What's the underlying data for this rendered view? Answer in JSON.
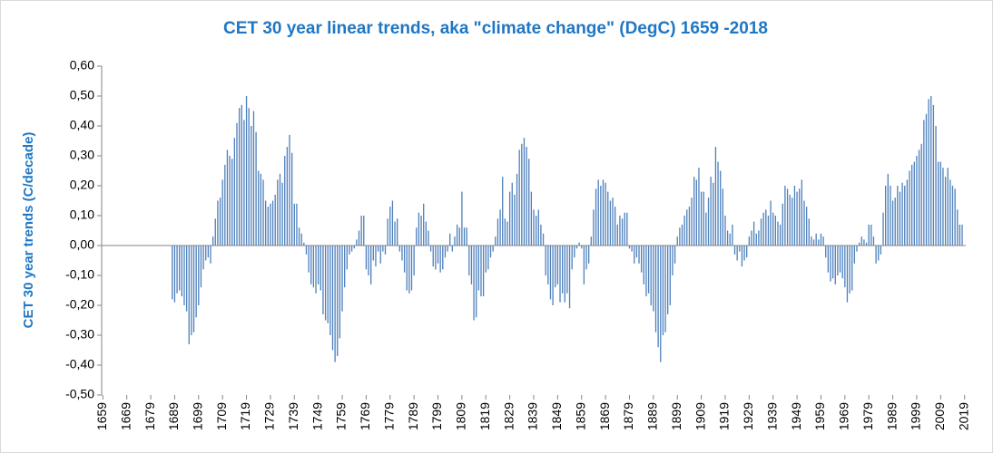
{
  "chart_data": {
    "type": "bar",
    "title": "CET 30 year linear trends, aka \"climate change\"  (DegC) 1659 -2018",
    "y_label": "CET 30 year trends (C/decade)",
    "color": "#4f81bd",
    "ylim": [
      -0.5,
      0.6
    ],
    "yticks": [
      {
        "value": -0.5,
        "label": "-0,50"
      },
      {
        "value": -0.4,
        "label": "-0,40"
      },
      {
        "value": -0.3,
        "label": "-0,30"
      },
      {
        "value": -0.2,
        "label": "-0,20"
      },
      {
        "value": -0.1,
        "label": "-0,10"
      },
      {
        "value": 0,
        "label": "0,00"
      },
      {
        "value": 0.1,
        "label": "0,10"
      },
      {
        "value": 0.2,
        "label": "0,20"
      },
      {
        "value": 0.3,
        "label": "0,30"
      },
      {
        "value": 0.4,
        "label": "0,40"
      },
      {
        "value": 0.5,
        "label": "0,50"
      },
      {
        "value": 0.6,
        "label": "0,60"
      }
    ],
    "grid": false,
    "categories": [
      "1659",
      null,
      null,
      null,
      null,
      null,
      null,
      null,
      null,
      null,
      "1669",
      null,
      null,
      null,
      null,
      null,
      null,
      null,
      null,
      null,
      "1679",
      null,
      null,
      null,
      null,
      null,
      null,
      null,
      null,
      null,
      "1689",
      null,
      null,
      null,
      null,
      null,
      null,
      null,
      null,
      null,
      "1699",
      null,
      null,
      null,
      null,
      null,
      null,
      null,
      null,
      null,
      "1709",
      null,
      null,
      null,
      null,
      null,
      null,
      null,
      null,
      null,
      "1719",
      null,
      null,
      null,
      null,
      null,
      null,
      null,
      null,
      null,
      "1729",
      null,
      null,
      null,
      null,
      null,
      null,
      null,
      null,
      null,
      "1739",
      null,
      null,
      null,
      null,
      null,
      null,
      null,
      null,
      null,
      "1749",
      null,
      null,
      null,
      null,
      null,
      null,
      null,
      null,
      null,
      "1759",
      null,
      null,
      null,
      null,
      null,
      null,
      null,
      null,
      null,
      "1769",
      null,
      null,
      null,
      null,
      null,
      null,
      null,
      null,
      null,
      "1779",
      null,
      null,
      null,
      null,
      null,
      null,
      null,
      null,
      null,
      "1789",
      null,
      null,
      null,
      null,
      null,
      null,
      null,
      null,
      null,
      "1799",
      null,
      null,
      null,
      null,
      null,
      null,
      null,
      null,
      null,
      "1809",
      null,
      null,
      null,
      null,
      null,
      null,
      null,
      null,
      null,
      "1819",
      null,
      null,
      null,
      null,
      null,
      null,
      null,
      null,
      null,
      "1829",
      null,
      null,
      null,
      null,
      null,
      null,
      null,
      null,
      null,
      "1839",
      null,
      null,
      null,
      null,
      null,
      null,
      null,
      null,
      null,
      "1849",
      null,
      null,
      null,
      null,
      null,
      null,
      null,
      null,
      null,
      "1859",
      null,
      null,
      null,
      null,
      null,
      null,
      null,
      null,
      null,
      "1869",
      null,
      null,
      null,
      null,
      null,
      null,
      null,
      null,
      null,
      "1879",
      null,
      null,
      null,
      null,
      null,
      null,
      null,
      null,
      null,
      "1889",
      null,
      null,
      null,
      null,
      null,
      null,
      null,
      null,
      null,
      "1899",
      null,
      null,
      null,
      null,
      null,
      null,
      null,
      null,
      null,
      "1909",
      null,
      null,
      null,
      null,
      null,
      null,
      null,
      null,
      null,
      "1919",
      null,
      null,
      null,
      null,
      null,
      null,
      null,
      null,
      null,
      "1929",
      null,
      null,
      null,
      null,
      null,
      null,
      null,
      null,
      null,
      "1939",
      null,
      null,
      null,
      null,
      null,
      null,
      null,
      null,
      null,
      "1949",
      null,
      null,
      null,
      null,
      null,
      null,
      null,
      null,
      null,
      "1959",
      null,
      null,
      null,
      null,
      null,
      null,
      null,
      null,
      null,
      "1969",
      null,
      null,
      null,
      null,
      null,
      null,
      null,
      null,
      null,
      "1979",
      null,
      null,
      null,
      null,
      null,
      null,
      null,
      null,
      null,
      "1989",
      null,
      null,
      null,
      null,
      null,
      null,
      null,
      null,
      null,
      "1999",
      null,
      null,
      null,
      null,
      null,
      null,
      null,
      null,
      null,
      "2009",
      null,
      null,
      null,
      null,
      null,
      null,
      null,
      null,
      null,
      "2019"
    ],
    "values": [
      null,
      null,
      null,
      null,
      null,
      null,
      null,
      null,
      null,
      null,
      null,
      null,
      null,
      null,
      null,
      null,
      null,
      null,
      null,
      null,
      null,
      null,
      null,
      null,
      null,
      null,
      null,
      null,
      null,
      -0.18,
      -0.19,
      -0.16,
      -0.15,
      -0.17,
      -0.2,
      -0.22,
      -0.33,
      -0.3,
      -0.29,
      -0.24,
      -0.2,
      -0.14,
      -0.08,
      -0.05,
      -0.04,
      -0.06,
      0.03,
      0.09,
      0.15,
      0.16,
      0.22,
      0.27,
      0.32,
      0.3,
      0.29,
      0.36,
      0.41,
      0.46,
      0.47,
      0.42,
      0.5,
      0.46,
      0.4,
      0.45,
      0.38,
      0.25,
      0.24,
      0.22,
      0.15,
      0.13,
      0.14,
      0.15,
      0.17,
      0.22,
      0.24,
      0.21,
      0.3,
      0.33,
      0.37,
      0.31,
      0.14,
      0.14,
      0.06,
      0.04,
      0.01,
      -0.03,
      -0.09,
      -0.13,
      -0.14,
      -0.16,
      -0.13,
      -0.15,
      -0.23,
      -0.25,
      -0.26,
      -0.3,
      -0.35,
      -0.39,
      -0.37,
      -0.31,
      -0.22,
      -0.14,
      -0.08,
      -0.03,
      -0.02,
      -0.01,
      0.02,
      0.05,
      0.1,
      0.1,
      -0.08,
      -0.1,
      -0.13,
      -0.05,
      -0.07,
      -0.02,
      -0.06,
      -0.02,
      -0.03,
      0.09,
      0.13,
      0.15,
      0.08,
      0.09,
      -0.02,
      -0.05,
      -0.09,
      -0.15,
      -0.16,
      -0.15,
      -0.1,
      0.06,
      0.11,
      0.1,
      0.14,
      0.08,
      0.05,
      -0.02,
      -0.07,
      -0.08,
      -0.06,
      -0.09,
      -0.08,
      -0.04,
      -0.02,
      0.04,
      -0.02,
      0.03,
      0.07,
      0.06,
      0.18,
      0.06,
      0.06,
      -0.1,
      -0.13,
      -0.25,
      -0.24,
      -0.15,
      -0.17,
      -0.17,
      -0.09,
      -0.08,
      -0.04,
      -0.02,
      0.03,
      0.09,
      0.12,
      0.23,
      0.09,
      0.08,
      0.18,
      0.21,
      0.17,
      0.24,
      0.32,
      0.34,
      0.36,
      0.33,
      0.29,
      0.18,
      0.12,
      0.1,
      0.12,
      0.07,
      0.04,
      -0.1,
      -0.13,
      -0.18,
      -0.2,
      -0.14,
      -0.13,
      -0.19,
      -0.16,
      -0.19,
      -0.16,
      -0.21,
      -0.08,
      -0.04,
      -0.01,
      0.01,
      -0.01,
      -0.13,
      -0.08,
      -0.06,
      0.03,
      0.12,
      0.19,
      0.22,
      0.2,
      0.22,
      0.21,
      0.18,
      0.15,
      0.16,
      0.13,
      0.07,
      0.1,
      0.09,
      0.11,
      0.11,
      -0.01,
      -0.02,
      -0.06,
      -0.04,
      -0.06,
      -0.09,
      -0.13,
      -0.17,
      -0.16,
      -0.2,
      -0.22,
      -0.29,
      -0.34,
      -0.39,
      -0.3,
      -0.29,
      -0.23,
      -0.2,
      -0.1,
      -0.06,
      0.03,
      0.06,
      0.07,
      0.1,
      0.12,
      0.13,
      0.16,
      0.23,
      0.22,
      0.26,
      0.18,
      0.18,
      0.11,
      0.16,
      0.23,
      0.21,
      0.33,
      0.28,
      0.25,
      0.19,
      0.1,
      0.05,
      0.04,
      0.07,
      -0.03,
      -0.05,
      -0.02,
      -0.07,
      -0.05,
      -0.04,
      0.03,
      0.05,
      0.08,
      0.04,
      0.05,
      0.09,
      0.11,
      0.12,
      0.1,
      0.15,
      0.11,
      0.1,
      0.08,
      0.07,
      0.14,
      0.2,
      0.19,
      0.17,
      0.16,
      0.2,
      0.18,
      0.19,
      0.22,
      0.15,
      0.13,
      0.09,
      0.03,
      0.02,
      0.04,
      0.02,
      0.04,
      0.03,
      -0.04,
      -0.09,
      -0.12,
      -0.11,
      -0.13,
      -0.1,
      -0.09,
      -0.11,
      -0.14,
      -0.19,
      -0.16,
      -0.15,
      -0.06,
      -0.02,
      0.01,
      0.03,
      0.02,
      0.01,
      0.07,
      0.07,
      0.03,
      -0.06,
      -0.05,
      -0.03,
      0.11,
      0.2,
      0.24,
      0.2,
      0.15,
      0.16,
      0.2,
      0.18,
      0.21,
      0.2,
      0.22,
      0.25,
      0.27,
      0.28,
      0.3,
      0.32,
      0.34,
      0.42,
      0.44,
      0.49,
      0.5,
      0.47,
      0.4,
      0.28,
      0.28,
      0.26,
      0.23,
      0.26,
      0.22,
      0.2,
      0.19,
      0.12,
      0.07,
      0.07,
      null
    ]
  }
}
